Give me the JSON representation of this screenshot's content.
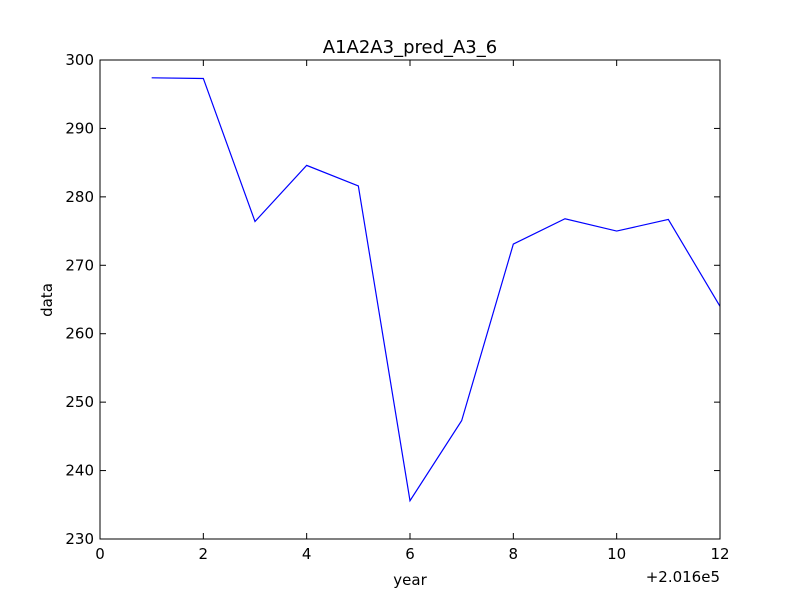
{
  "chart_data": {
    "type": "line",
    "title": "A1A2A3_pred_A3_6",
    "xlabel": "year",
    "ylabel": "data",
    "x_offset_label": "+2.016e5",
    "xlim": [
      0,
      12
    ],
    "ylim": [
      230,
      300
    ],
    "xticks": [
      0,
      2,
      4,
      6,
      8,
      10,
      12
    ],
    "yticks": [
      230,
      240,
      250,
      260,
      270,
      280,
      290,
      300
    ],
    "grid": false,
    "line_color": "#0000ff",
    "series": [
      {
        "x": [
          1,
          2,
          3,
          4,
          5,
          6,
          7,
          8,
          9,
          10,
          11,
          12
        ],
        "values": [
          297.4,
          297.3,
          276.4,
          284.6,
          281.6,
          235.6,
          247.3,
          273.1,
          276.8,
          275.0,
          276.7,
          264.0
        ]
      }
    ]
  }
}
